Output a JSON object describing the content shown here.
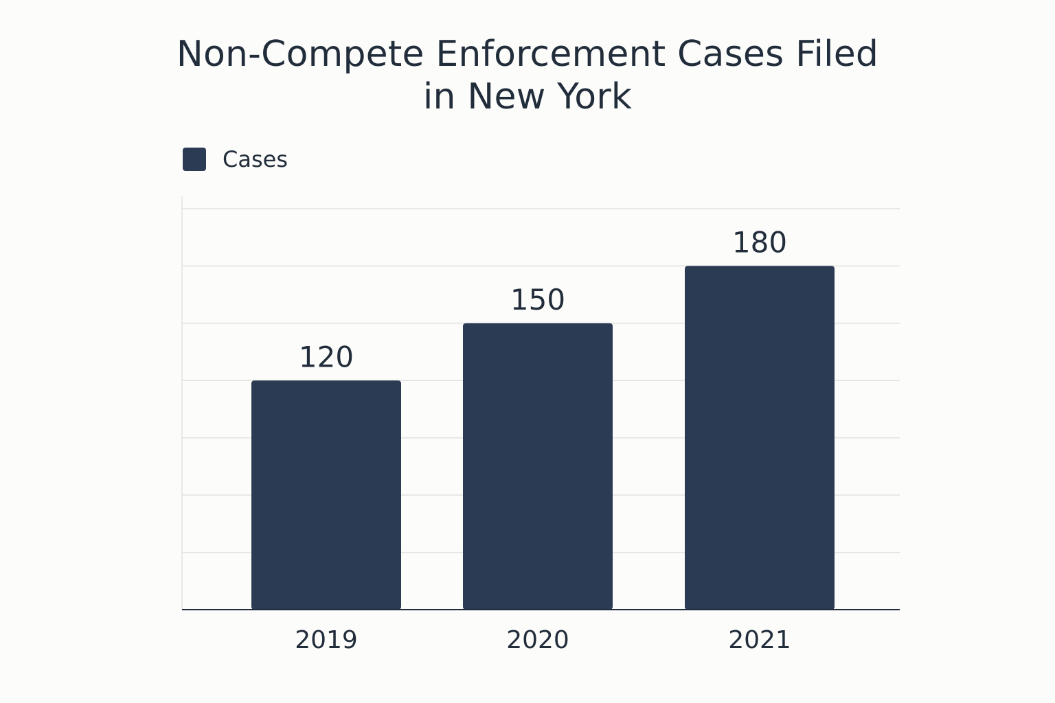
{
  "chart_data": {
    "type": "bar",
    "title_lines": [
      "Non-Compete Enforcement Cases Filed",
      "in New York"
    ],
    "categories": [
      "2019",
      "2020",
      "2021"
    ],
    "series": [
      {
        "name": "Cases",
        "values": [
          120,
          150,
          180
        ],
        "color": "#2b3b53"
      }
    ],
    "xlabel": "",
    "ylabel": "",
    "ylim": [
      0,
      210
    ],
    "grid": true,
    "legend_position": "top-left",
    "colors": {
      "background": "#fcfcfa",
      "grid": "#e2e2e2",
      "axis": "#1f2b3c"
    }
  }
}
